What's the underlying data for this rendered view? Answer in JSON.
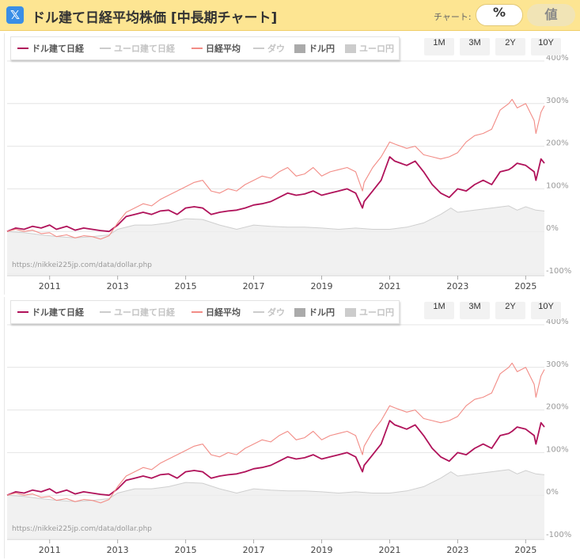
{
  "header": {
    "logo_icon": "x-icon",
    "logo_glyph": "𝕏",
    "title": "ドル建て日経平均株価 [中長期チャート]",
    "mode_label": "チャート:",
    "mode_percent": "%",
    "mode_value": "値"
  },
  "legend": [
    {
      "label": "ドル建て日経",
      "color": "#b0125a",
      "kind": "line",
      "active": true
    },
    {
      "label": "ユーロ建て日経",
      "color": "#cccccc",
      "kind": "line",
      "active": false
    },
    {
      "label": "日経平均",
      "color": "#f28c86",
      "kind": "line",
      "active": true
    },
    {
      "label": "ダウ",
      "color": "#cccccc",
      "kind": "line",
      "active": false
    },
    {
      "label": "ドル円",
      "color": "#aaaaaa",
      "kind": "area",
      "active": true
    },
    {
      "label": "ユーロ円",
      "color": "#cccccc",
      "kind": "area",
      "active": false
    }
  ],
  "range_buttons": [
    "1M",
    "3M",
    "2Y",
    "10Y"
  ],
  "source_text": "https://nikkei225jp.com/data/dollar.php",
  "chart_data": {
    "type": "line",
    "x_tick_labels": [
      "2011",
      "2013",
      "2015",
      "2017",
      "2019",
      "2021",
      "2023",
      "2025"
    ],
    "y_tick_labels": [
      "400%",
      "300%",
      "200%",
      "100%",
      "0%",
      "-100%"
    ],
    "ylim": [
      -100,
      400
    ],
    "xlim": [
      2009.75,
      2025.55
    ],
    "legend_position": "top-left",
    "grid": true,
    "series": [
      {
        "name": "ドル建て日経",
        "kind": "line",
        "color": "#b0125a",
        "x": [
          2009.75,
          2010.0,
          2010.25,
          2010.5,
          2010.75,
          2011.0,
          2011.2,
          2011.5,
          2011.75,
          2012.0,
          2012.25,
          2012.5,
          2012.75,
          2013.0,
          2013.25,
          2013.5,
          2013.75,
          2014.0,
          2014.25,
          2014.5,
          2014.75,
          2015.0,
          2015.25,
          2015.5,
          2015.75,
          2016.0,
          2016.25,
          2016.5,
          2016.75,
          2017.0,
          2017.25,
          2017.5,
          2017.75,
          2018.0,
          2018.25,
          2018.5,
          2018.75,
          2019.0,
          2019.25,
          2019.5,
          2019.75,
          2020.0,
          2020.2,
          2020.25,
          2020.5,
          2020.75,
          2021.0,
          2021.15,
          2021.5,
          2021.75,
          2022.0,
          2022.25,
          2022.5,
          2022.75,
          2023.0,
          2023.25,
          2023.5,
          2023.75,
          2024.0,
          2024.25,
          2024.5,
          2024.6,
          2024.75,
          2025.0,
          2025.25,
          2025.3,
          2025.45,
          2025.55
        ],
        "y": [
          0,
          8,
          5,
          12,
          8,
          15,
          5,
          12,
          3,
          8,
          5,
          2,
          0,
          15,
          35,
          40,
          45,
          40,
          48,
          50,
          40,
          55,
          58,
          55,
          40,
          45,
          48,
          50,
          55,
          62,
          65,
          70,
          80,
          90,
          85,
          88,
          95,
          85,
          90,
          95,
          100,
          90,
          55,
          70,
          95,
          120,
          175,
          165,
          155,
          165,
          140,
          110,
          90,
          80,
          100,
          95,
          110,
          120,
          110,
          140,
          145,
          150,
          160,
          155,
          140,
          120,
          170,
          160
        ]
      },
      {
        "name": "日経平均",
        "kind": "line",
        "color": "#f28c86",
        "x": [
          2009.75,
          2010.0,
          2010.25,
          2010.5,
          2010.75,
          2011.0,
          2011.2,
          2011.5,
          2011.75,
          2012.0,
          2012.25,
          2012.5,
          2012.75,
          2013.0,
          2013.25,
          2013.5,
          2013.75,
          2014.0,
          2014.25,
          2014.5,
          2014.75,
          2015.0,
          2015.25,
          2015.5,
          2015.75,
          2016.0,
          2016.25,
          2016.5,
          2016.75,
          2017.0,
          2017.25,
          2017.5,
          2017.75,
          2018.0,
          2018.25,
          2018.5,
          2018.75,
          2019.0,
          2019.25,
          2019.5,
          2019.75,
          2020.0,
          2020.2,
          2020.25,
          2020.5,
          2020.75,
          2021.0,
          2021.15,
          2021.5,
          2021.75,
          2022.0,
          2022.25,
          2022.5,
          2022.75,
          2023.0,
          2023.25,
          2023.5,
          2023.75,
          2024.0,
          2024.25,
          2024.5,
          2024.6,
          2024.75,
          2025.0,
          2025.25,
          2025.3,
          2025.45,
          2025.55
        ],
        "y": [
          0,
          5,
          0,
          3,
          -5,
          -3,
          -12,
          -8,
          -15,
          -10,
          -12,
          -18,
          -10,
          20,
          45,
          55,
          65,
          60,
          75,
          85,
          95,
          105,
          115,
          120,
          95,
          90,
          100,
          95,
          110,
          120,
          130,
          125,
          140,
          150,
          130,
          135,
          150,
          130,
          140,
          145,
          150,
          140,
          95,
          115,
          150,
          175,
          210,
          205,
          195,
          200,
          180,
          175,
          170,
          175,
          185,
          210,
          225,
          230,
          240,
          285,
          300,
          310,
          290,
          300,
          260,
          230,
          280,
          295
        ]
      },
      {
        "name": "ドル円",
        "kind": "area",
        "color": "#aaaaaa",
        "x": [
          2009.75,
          2010.25,
          2010.75,
          2011.25,
          2011.75,
          2012.25,
          2012.75,
          2013.0,
          2013.5,
          2014.0,
          2014.5,
          2015.0,
          2015.5,
          2016.0,
          2016.5,
          2017.0,
          2017.5,
          2018.0,
          2018.5,
          2019.0,
          2019.5,
          2020.0,
          2020.5,
          2021.0,
          2021.5,
          2022.0,
          2022.5,
          2022.8,
          2023.0,
          2023.5,
          2024.0,
          2024.5,
          2024.75,
          2025.0,
          2025.3,
          2025.55
        ],
        "y": [
          0,
          -3,
          -8,
          -12,
          -15,
          -12,
          -8,
          5,
          15,
          15,
          20,
          30,
          28,
          15,
          5,
          15,
          12,
          10,
          10,
          8,
          5,
          8,
          5,
          5,
          10,
          20,
          40,
          55,
          45,
          50,
          55,
          60,
          50,
          58,
          50,
          48
        ]
      }
    ]
  }
}
